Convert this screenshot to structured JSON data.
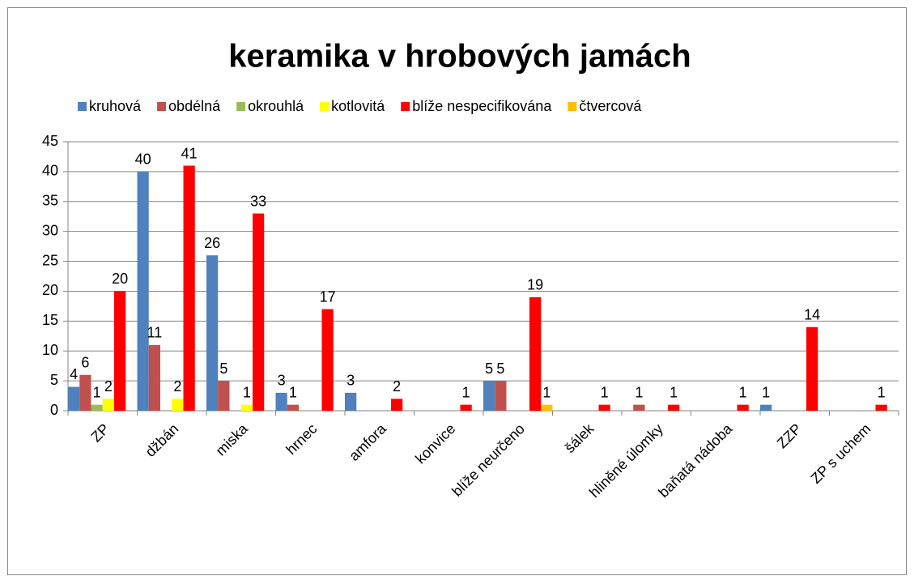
{
  "chart_data": {
    "type": "bar",
    "title": "keramika v hrobových jamách",
    "categories": [
      "ZP",
      "džbán",
      "miska",
      "hrnec",
      "amfora",
      "konvice",
      "blíže neurčeno",
      "šálek",
      "hliněné úlomky",
      "baňatá nádoba",
      "ZZP",
      "ZP s uchem"
    ],
    "series": [
      {
        "name": "kruhová",
        "color": "#4f81bd",
        "values": [
          4,
          40,
          26,
          3,
          3,
          null,
          5,
          null,
          null,
          null,
          1,
          null
        ]
      },
      {
        "name": "obdélná",
        "color": "#c0504d",
        "values": [
          6,
          11,
          5,
          1,
          null,
          null,
          5,
          null,
          1,
          null,
          null,
          null
        ]
      },
      {
        "name": "okrouhlá",
        "color": "#9bbb59",
        "values": [
          1,
          null,
          null,
          null,
          null,
          null,
          null,
          null,
          null,
          null,
          null,
          null
        ]
      },
      {
        "name": "kotlovitá",
        "color": "#ffff00",
        "values": [
          2,
          2,
          1,
          null,
          null,
          null,
          null,
          null,
          null,
          null,
          null,
          null
        ]
      },
      {
        "name": "blíže nespecifikována",
        "color": "#ff0000",
        "values": [
          20,
          41,
          33,
          17,
          2,
          1,
          19,
          1,
          1,
          1,
          14,
          1
        ]
      },
      {
        "name": "čtvercová",
        "color": "#ffc000",
        "values": [
          null,
          null,
          null,
          null,
          null,
          null,
          1,
          null,
          null,
          null,
          null,
          null
        ]
      }
    ],
    "ylim": [
      0,
      45
    ],
    "yticks": [
      0,
      5,
      10,
      15,
      20,
      25,
      30,
      35,
      40,
      45
    ],
    "grid": true,
    "legend": "top"
  }
}
